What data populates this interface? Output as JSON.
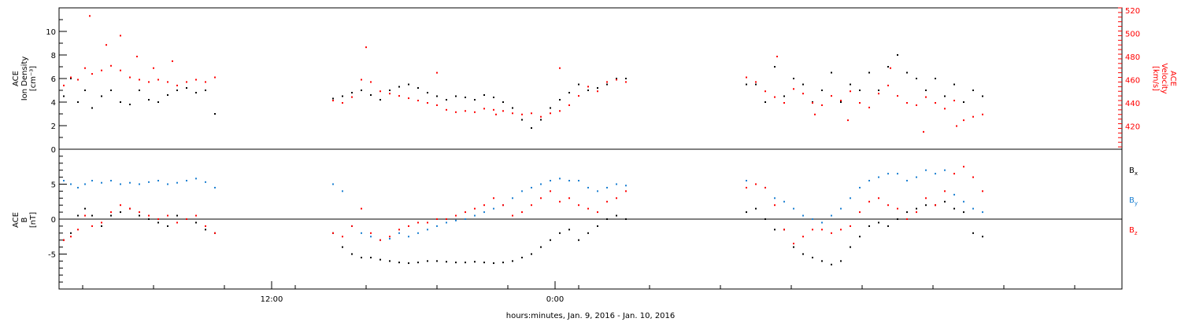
{
  "chart_data": [
    {
      "type": "scatter",
      "panel": "top",
      "x_unit": "hours since Jan. 9, 2016 00:00",
      "xlim": [
        3,
        48
      ],
      "ylabel_lines": [
        "ACE",
        "Ion Density",
        "[cm⁻³]"
      ],
      "ylim": [
        0,
        12
      ],
      "yticks": [
        0,
        2,
        4,
        6,
        8,
        10
      ],
      "ylabel2_lines": [
        "ACE",
        "Velocity",
        "[km/s]"
      ],
      "ylim2": [
        400,
        522
      ],
      "yticks2": [
        420,
        440,
        460,
        480,
        500,
        520
      ],
      "colors": {
        "density": "#000000",
        "velocity": "#ff0000"
      },
      "series": [
        {
          "axis": "left",
          "color": "#000000",
          "x": [
            3.2,
            3.5,
            3.8,
            4.1,
            4.4,
            4.8,
            5.2,
            5.6,
            6.0,
            6.4,
            6.8,
            7.2,
            7.6,
            8.0,
            8.4,
            8.8,
            9.2,
            9.6,
            14.6,
            15.0,
            15.4,
            15.8,
            16.2,
            16.6,
            17.0,
            17.4,
            17.8,
            18.2,
            18.6,
            19.0,
            19.4,
            19.8,
            20.2,
            20.6,
            21.0,
            21.4,
            21.8,
            22.2,
            22.6,
            23.0,
            23.4,
            23.8,
            24.2,
            24.6,
            25.0,
            25.4,
            25.8,
            26.2,
            26.6,
            27.0,
            32.1,
            32.5,
            32.9,
            33.3,
            33.7,
            34.1,
            34.5,
            34.9,
            35.3,
            35.7,
            36.1,
            36.5,
            36.9,
            37.3,
            37.7,
            38.1,
            38.5,
            38.9,
            39.3,
            39.7,
            40.1,
            40.5,
            40.9,
            41.3,
            41.7,
            42.1
          ],
          "y": [
            4.5,
            6.0,
            4.0,
            5.0,
            3.5,
            4.5,
            5.0,
            4.0,
            3.8,
            5.0,
            4.2,
            4.0,
            4.6,
            5.0,
            5.2,
            4.8,
            5.0,
            3.0,
            4.3,
            4.5,
            4.8,
            5.0,
            4.6,
            4.2,
            5.0,
            5.3,
            5.5,
            5.2,
            4.8,
            4.5,
            4.2,
            4.5,
            4.4,
            4.2,
            4.6,
            4.4,
            4.0,
            3.5,
            2.5,
            1.8,
            2.5,
            3.5,
            4.2,
            4.8,
            5.5,
            5.0,
            5.2,
            5.5,
            6.0,
            6.0,
            5.5,
            5.5,
            4.0,
            7.0,
            4.5,
            6.0,
            5.5,
            4.0,
            5.0,
            6.5,
            4.0,
            5.5,
            5.0,
            6.5,
            5.0,
            7.0,
            8.0,
            6.5,
            6.0,
            5.0,
            6.0,
            4.5,
            5.5,
            4.0,
            5.0,
            4.5
          ]
        },
        {
          "axis": "right",
          "color": "#ff0000",
          "x": [
            3.2,
            3.5,
            3.8,
            4.1,
            4.4,
            4.8,
            5.2,
            5.6,
            6.0,
            6.4,
            6.8,
            7.2,
            7.6,
            8.0,
            8.4,
            8.8,
            9.2,
            9.6,
            14.6,
            15.0,
            15.4,
            15.8,
            16.2,
            16.6,
            17.0,
            17.4,
            17.8,
            18.2,
            18.6,
            19.0,
            19.4,
            19.8,
            20.2,
            20.6,
            21.0,
            21.4,
            21.8,
            22.2,
            22.6,
            23.0,
            23.4,
            23.8,
            24.2,
            24.6,
            25.0,
            25.4,
            25.8,
            26.2,
            26.6,
            27.0,
            32.1,
            32.5,
            32.9,
            33.3,
            33.7,
            34.1,
            34.5,
            34.9,
            35.3,
            35.7,
            36.1,
            36.5,
            36.9,
            37.3,
            37.7,
            38.1,
            38.5,
            38.9,
            39.3,
            39.7,
            40.1,
            40.5,
            40.9,
            41.3,
            41.7,
            42.1
          ],
          "y": [
            455,
            462,
            460,
            470,
            465,
            468,
            472,
            468,
            462,
            460,
            458,
            460,
            458,
            455,
            458,
            460,
            458,
            462,
            442,
            440,
            445,
            460,
            458,
            450,
            448,
            446,
            444,
            442,
            440,
            438,
            434,
            432,
            433,
            432,
            435,
            434,
            433,
            431,
            430,
            431,
            428,
            431,
            433,
            438,
            446,
            454,
            450,
            458,
            460,
            458,
            462,
            458,
            450,
            445,
            440,
            452,
            448,
            440,
            438,
            446,
            442,
            450,
            440,
            436,
            448,
            455,
            446,
            440,
            438,
            445,
            440,
            435,
            442,
            425,
            428,
            430
          ]
        },
        {
          "axis": "right",
          "color": "#ff0000",
          "x": [
            4.3,
            5.0,
            5.6,
            6.3,
            7.0,
            7.8,
            16.0,
            19.0,
            21.5,
            24.2,
            33.4,
            35.0,
            36.4,
            38.2,
            39.6,
            41.0
          ],
          "y": [
            515,
            490,
            498,
            480,
            470,
            476,
            488,
            466,
            430,
            470,
            480,
            430,
            425,
            470,
            415,
            420
          ]
        }
      ]
    },
    {
      "type": "scatter",
      "panel": "bottom",
      "x_unit": "hours since Jan. 9, 2016 00:00",
      "xlim": [
        3,
        48
      ],
      "xticks": [
        12,
        24
      ],
      "xtick_labels": [
        "12:00",
        "0:00"
      ],
      "xlabel": "hours:minutes, Jan.  9, 2016 - Jan. 10, 2016",
      "ylabel_lines": [
        "ACE",
        "B",
        "[nT]"
      ],
      "ylim": [
        -10,
        10
      ],
      "yticks": [
        -5,
        0,
        5
      ],
      "zero_line": true,
      "legend": [
        {
          "label": "B",
          "sub": "x",
          "color": "#000000"
        },
        {
          "label": "B",
          "sub": "y",
          "color": "#1a7fd1"
        },
        {
          "label": "B",
          "sub": "z",
          "color": "#ff0000"
        }
      ],
      "series": [
        {
          "color": "#000000",
          "x": [
            3.2,
            3.5,
            3.8,
            4.1,
            4.4,
            4.8,
            5.2,
            5.6,
            6.0,
            6.4,
            6.8,
            7.2,
            7.6,
            8.0,
            8.4,
            8.8,
            9.2,
            9.6,
            14.6,
            15.0,
            15.4,
            15.8,
            16.2,
            16.6,
            17.0,
            17.4,
            17.8,
            18.2,
            18.6,
            19.0,
            19.4,
            19.8,
            20.2,
            20.6,
            21.0,
            21.4,
            21.8,
            22.2,
            22.6,
            23.0,
            23.4,
            23.8,
            24.2,
            24.6,
            25.0,
            25.4,
            25.8,
            26.2,
            26.6,
            27.0,
            32.1,
            32.5,
            32.9,
            33.3,
            33.7,
            34.1,
            34.5,
            34.9,
            35.3,
            35.7,
            36.1,
            36.5,
            36.9,
            37.3,
            37.7,
            38.1,
            38.5,
            38.9,
            39.3,
            39.7,
            40.1,
            40.5,
            40.9,
            41.3,
            41.7,
            42.1
          ],
          "y": [
            -3.0,
            -2.0,
            0.5,
            1.5,
            0.5,
            -1.0,
            0.5,
            1.0,
            1.5,
            0.5,
            0.0,
            -0.5,
            -1.0,
            0.5,
            0.0,
            -0.5,
            -1.5,
            -2.0,
            -2.0,
            -4.0,
            -5.0,
            -5.5,
            -5.5,
            -5.8,
            -6.0,
            -6.2,
            -6.3,
            -6.2,
            -6.0,
            -6.0,
            -6.1,
            -6.2,
            -6.2,
            -6.1,
            -6.2,
            -6.3,
            -6.2,
            -6.0,
            -5.5,
            -5.0,
            -4.0,
            -3.0,
            -2.0,
            -1.5,
            -3.0,
            -2.0,
            -1.0,
            0.0,
            0.5,
            0.0,
            1.0,
            1.5,
            0.0,
            -1.5,
            -1.5,
            -4.0,
            -5.0,
            -5.5,
            -6.0,
            -6.5,
            -6.0,
            -4.0,
            -2.5,
            -1.0,
            -0.5,
            -1.0,
            0.0,
            1.0,
            1.5,
            2.0,
            2.0,
            2.5,
            1.5,
            1.0,
            -2.0,
            -2.5
          ]
        },
        {
          "color": "#1a7fd1",
          "x": [
            3.2,
            3.5,
            3.8,
            4.1,
            4.4,
            4.8,
            5.2,
            5.6,
            6.0,
            6.4,
            6.8,
            7.2,
            7.6,
            8.0,
            8.4,
            8.8,
            9.2,
            9.6,
            14.6,
            15.0,
            15.4,
            15.8,
            16.2,
            16.6,
            17.0,
            17.4,
            17.8,
            18.2,
            18.6,
            19.0,
            19.4,
            19.8,
            20.2,
            20.6,
            21.0,
            21.4,
            21.8,
            22.2,
            22.6,
            23.0,
            23.4,
            23.8,
            24.2,
            24.6,
            25.0,
            25.4,
            25.8,
            26.2,
            26.6,
            27.0,
            32.1,
            32.5,
            32.9,
            33.3,
            33.7,
            34.1,
            34.5,
            34.9,
            35.3,
            35.7,
            36.1,
            36.5,
            36.9,
            37.3,
            37.7,
            38.1,
            38.5,
            38.9,
            39.3,
            39.7,
            40.1,
            40.5,
            40.9,
            41.3,
            41.7,
            42.1
          ],
          "y": [
            5.5,
            5.0,
            4.5,
            5.0,
            5.5,
            5.2,
            5.5,
            5.0,
            5.2,
            5.0,
            5.3,
            5.5,
            5.0,
            5.2,
            5.5,
            5.8,
            5.3,
            4.5,
            5.0,
            4.0,
            -1.0,
            -2.0,
            -2.5,
            -3.0,
            -2.8,
            -2.0,
            -2.5,
            -2.0,
            -1.5,
            -1.0,
            -0.5,
            -0.2,
            0.0,
            0.5,
            1.0,
            1.5,
            2.0,
            3.0,
            4.0,
            4.5,
            5.0,
            5.5,
            5.8,
            5.5,
            5.5,
            4.5,
            4.0,
            4.5,
            5.0,
            4.8,
            5.5,
            5.0,
            4.5,
            3.0,
            2.5,
            1.5,
            0.5,
            0.0,
            -0.5,
            0.5,
            1.5,
            3.0,
            4.5,
            5.5,
            6.0,
            6.5,
            6.5,
            5.5,
            6.0,
            7.0,
            6.5,
            7.0,
            3.5,
            2.5,
            1.5,
            1.0
          ]
        },
        {
          "color": "#ff0000",
          "x": [
            3.2,
            3.5,
            3.8,
            4.1,
            4.4,
            4.8,
            5.2,
            5.6,
            6.0,
            6.4,
            6.8,
            7.2,
            7.6,
            8.0,
            8.4,
            8.8,
            9.2,
            9.6,
            14.6,
            15.0,
            15.4,
            15.8,
            16.2,
            16.6,
            17.0,
            17.4,
            17.8,
            18.2,
            18.6,
            19.0,
            19.4,
            19.8,
            20.2,
            20.6,
            21.0,
            21.4,
            21.8,
            22.2,
            22.6,
            23.0,
            23.4,
            23.8,
            24.2,
            24.6,
            25.0,
            25.4,
            25.8,
            26.2,
            26.6,
            27.0,
            32.1,
            32.5,
            32.9,
            33.3,
            33.7,
            34.1,
            34.5,
            34.9,
            35.3,
            35.7,
            36.1,
            36.5,
            36.9,
            37.3,
            37.7,
            38.1,
            38.5,
            38.9,
            39.3,
            39.7,
            40.1,
            40.5,
            40.9,
            41.3,
            41.7,
            42.1
          ],
          "y": [
            -3.0,
            -2.5,
            -1.5,
            0.5,
            -1.0,
            -0.5,
            1.0,
            2.0,
            1.5,
            1.0,
            0.5,
            0.0,
            0.5,
            -0.5,
            0.0,
            0.5,
            -1.0,
            -2.0,
            -2.0,
            -2.5,
            -1.0,
            1.5,
            -2.0,
            -3.0,
            -2.5,
            -1.5,
            -1.0,
            -0.5,
            -0.5,
            0.0,
            0.0,
            0.5,
            1.0,
            1.5,
            2.0,
            3.0,
            2.0,
            0.5,
            1.0,
            2.0,
            3.0,
            4.0,
            2.5,
            3.0,
            2.0,
            1.5,
            1.0,
            2.5,
            3.0,
            4.0,
            4.5,
            5.0,
            4.5,
            2.0,
            -1.5,
            -3.5,
            -2.5,
            -1.5,
            -1.5,
            -2.0,
            -1.5,
            -1.0,
            1.0,
            2.5,
            3.0,
            2.0,
            1.5,
            0.0,
            1.0,
            3.0,
            2.0,
            4.0,
            6.5,
            7.5,
            6.0,
            4.0
          ]
        }
      ]
    }
  ]
}
